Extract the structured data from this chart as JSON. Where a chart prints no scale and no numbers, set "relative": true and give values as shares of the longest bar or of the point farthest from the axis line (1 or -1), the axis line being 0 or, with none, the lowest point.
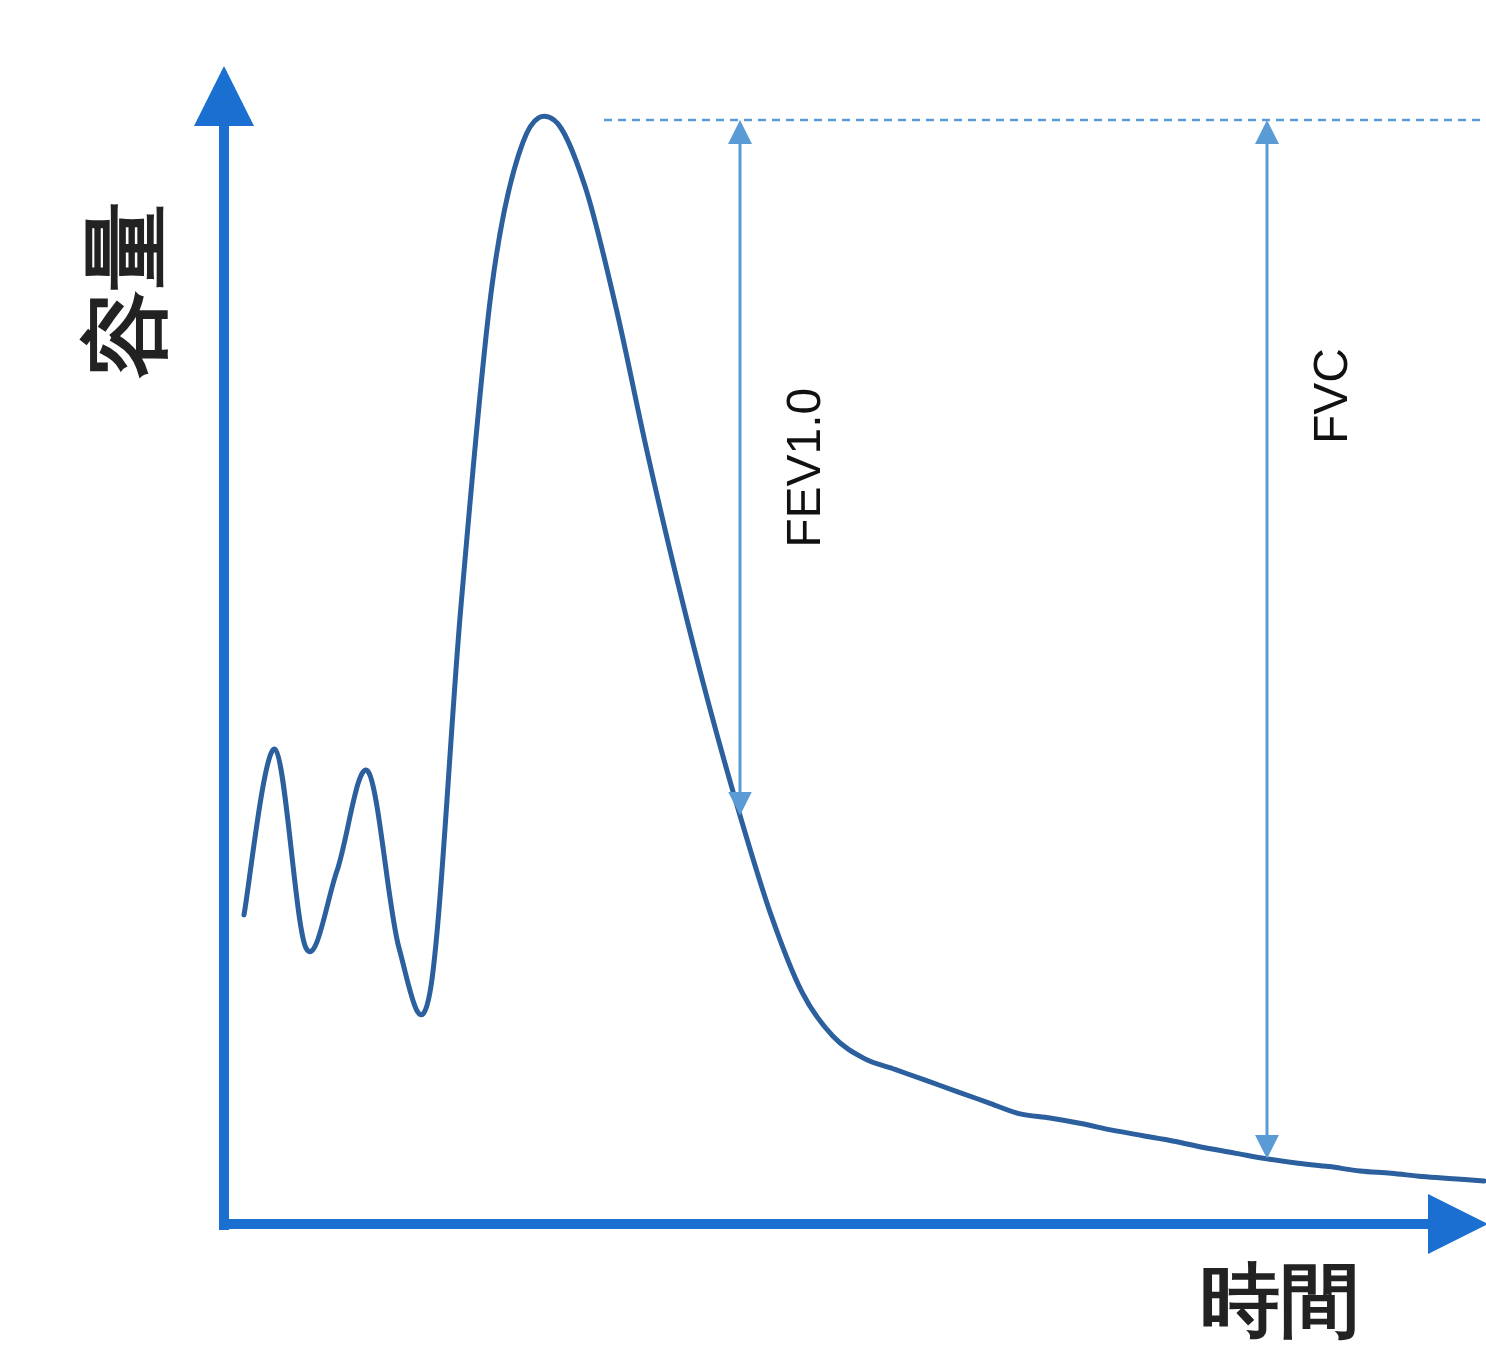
{
  "chart_data": {
    "type": "line",
    "relative": true,
    "ylabel": "容量",
    "xlabel": "時間",
    "marker": "none",
    "line_style": "solid",
    "categories": [
      null,
      null,
      null,
      null,
      null,
      null,
      null,
      null,
      null,
      null,
      null,
      null,
      null,
      null,
      null,
      null,
      null,
      null,
      null,
      null,
      null,
      null,
      null,
      null,
      null,
      null,
      null,
      null,
      null,
      null,
      null,
      null,
      null,
      null,
      null,
      null,
      null,
      null,
      null,
      null,
      null
    ],
    "series": [
      {
        "color": "#2b5f9e",
        "values": [
          0.28,
          0.43,
          0.25,
          0.32,
          0.41,
          0.25,
          0.21,
          0.56,
          0.85,
          0.98,
          1,
          0.94,
          0.83,
          0.7,
          0.58,
          0.47,
          0.37,
          0.28,
          0.21,
          0.17,
          0.15,
          0.14,
          0.13,
          0.12,
          0.11,
          0.1,
          0.096,
          0.091,
          0.085,
          0.08,
          0.075,
          0.069,
          0.064,
          0.059,
          0.055,
          0.052,
          0.048,
          0.046,
          0.043,
          0.041,
          0.039
        ]
      }
    ],
    "ref_lines": [
      {
        "axis": "y",
        "value": 1,
        "color": "#5b9bd5",
        "line_style": "dashed"
      }
    ],
    "annotations": [
      "FEV1.0",
      "FVC"
    ]
  }
}
